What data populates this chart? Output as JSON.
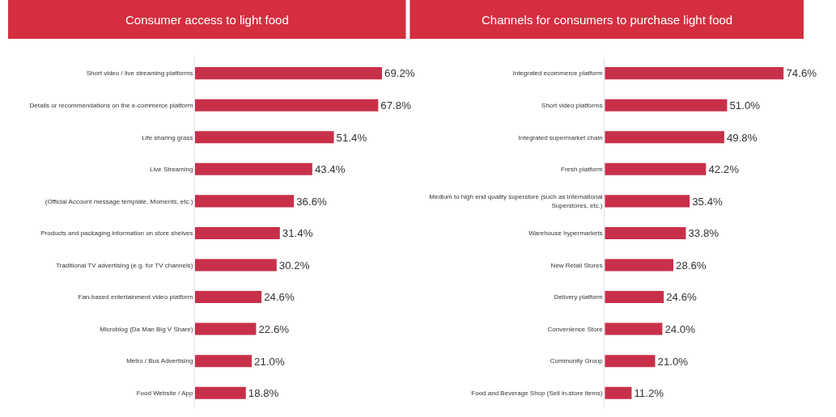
{
  "chart_data": [
    {
      "type": "bar",
      "orientation": "horizontal",
      "title": "Consumer access to light food",
      "categories": [
        "Short video / live streaming platforms",
        "Details or recommendations on the e-commerce platform",
        "Life sharing grass",
        "Live Streaming",
        "(Official Account message template, Moments, etc.)",
        "Products and packaging information on store shelves",
        "Traditional TV advertising (e.g. for TV channels)",
        "Fan-based entertainment video platform",
        "Microblog (Da Man Big V Share)",
        "Metro / Bus Advertising",
        "Food Website / App"
      ],
      "values": [
        69.2,
        67.8,
        51.4,
        43.4,
        36.6,
        31.4,
        30.2,
        24.6,
        22.6,
        21.0,
        18.8
      ],
      "value_labels": [
        "69.2%",
        "67.8%",
        "51.4%",
        "43.4%",
        "36.6%",
        "31.4%",
        "30.2%",
        "24.6%",
        "22.6%",
        "21.0%",
        "18.8%"
      ],
      "color": "#c8304a"
    },
    {
      "type": "bar",
      "orientation": "horizontal",
      "title": "Channels for consumers to purchase light food",
      "categories": [
        "Integrated ecommerce platform",
        "Short video platforms",
        "Integrated supermarket chain",
        "Fresh platform",
        "Medium to high end quality superstore (such as International Superstores, etc.)",
        "Warehouse hypermarkets",
        "New Retail Stores",
        "Delivery platform",
        "Convenience Store",
        "Community Group",
        "Food and Beverage Shop (Sell in-store items)"
      ],
      "values": [
        74.6,
        51.0,
        49.8,
        42.2,
        35.4,
        33.8,
        28.6,
        24.6,
        24.0,
        21.0,
        11.2
      ],
      "value_labels": [
        "74.6%",
        "51.0%",
        "49.8%",
        "42.2%",
        "35.4%",
        "33.8%",
        "28.6%",
        "24.6%",
        "24.0%",
        "21.0%",
        "11.2%"
      ],
      "color": "#c8304a"
    }
  ]
}
